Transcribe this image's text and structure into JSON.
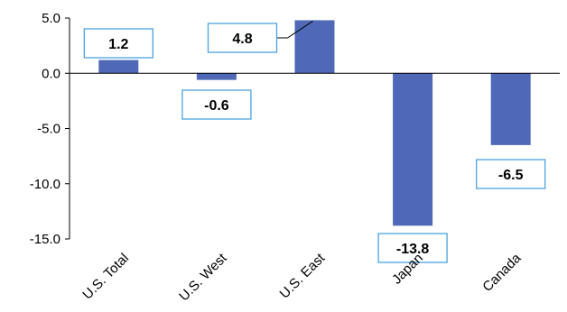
{
  "chart_data": {
    "type": "bar",
    "categories": [
      "U.S. Total",
      "U.S. West",
      "U.S. East",
      "Japan",
      "Canada"
    ],
    "values": [
      1.2,
      -0.6,
      4.8,
      -13.8,
      -6.5
    ],
    "data_labels": [
      "1.2",
      "-0.6",
      "4.8",
      "-13.8",
      "-6.5"
    ],
    "y_ticks": [
      "5.0",
      "0.0",
      "-5.0",
      "-10.0",
      "-15.0"
    ],
    "ylim": [
      -15,
      5
    ],
    "title": "",
    "xlabel": "",
    "ylabel": "",
    "grid": false,
    "legend": "none",
    "colors": {
      "bar": "#4f68b8",
      "label_border": "#4aa3df",
      "axis": "#000000"
    }
  }
}
